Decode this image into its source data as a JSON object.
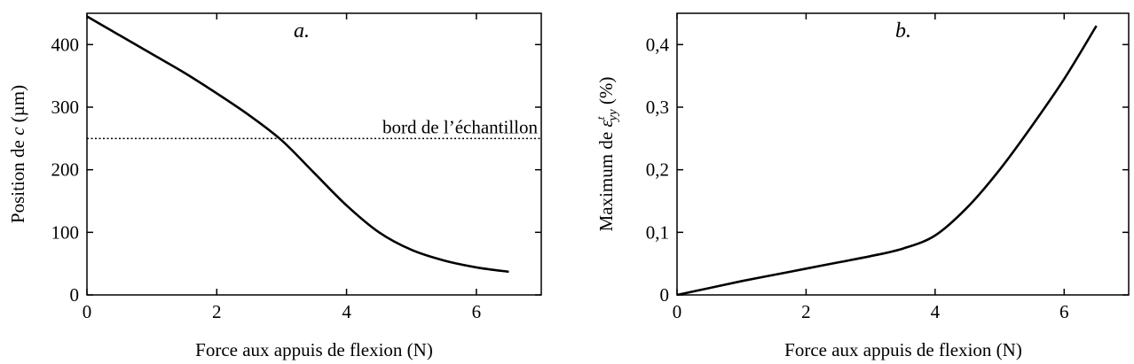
{
  "chart_data": [
    {
      "type": "line",
      "title": "a.",
      "xlabel": "Force aux appuis de flexion (N)",
      "ylabel_parts": [
        "Position de ",
        "c",
        " (µm)"
      ],
      "xlim": [
        0,
        7
      ],
      "ylim": [
        0,
        450
      ],
      "xticks": [
        0,
        2,
        4,
        6
      ],
      "xtick_labels": [
        "0",
        "2",
        "4",
        "6"
      ],
      "yticks": [
        0,
        100,
        200,
        300,
        400
      ],
      "ytick_labels": [
        "0",
        "100",
        "200",
        "300",
        "400"
      ],
      "grid": false,
      "series": [
        {
          "style": "solid",
          "x": [
            0,
            0.5,
            1,
            1.5,
            2,
            2.5,
            3,
            3.5,
            4,
            4.5,
            5,
            5.5,
            6,
            6.5
          ],
          "y": [
            445,
            415,
            385,
            355,
            322,
            287,
            247,
            195,
            143,
            100,
            72,
            55,
            44,
            37
          ]
        }
      ],
      "reference_line": {
        "y": 250,
        "label": "bord de l’échantillon",
        "style": "dotted"
      }
    },
    {
      "type": "line",
      "title": "b.",
      "xlabel": "Force aux appuis de flexion (N)",
      "ylabel_parts": [
        "Maximum de ",
        "ε",
        "t",
        "yy",
        " (%)"
      ],
      "xlim": [
        0,
        7
      ],
      "ylim": [
        0,
        0.45
      ],
      "xticks": [
        0,
        2,
        4,
        6
      ],
      "xtick_labels": [
        "0",
        "2",
        "4",
        "6"
      ],
      "yticks": [
        0,
        0.1,
        0.2,
        0.3,
        0.4
      ],
      "ytick_labels": [
        "0",
        "0,1",
        "0,2",
        "0,3",
        "0,4"
      ],
      "grid": false,
      "series": [
        {
          "style": "solid",
          "x": [
            0,
            0.5,
            1,
            1.5,
            2,
            2.5,
            3,
            3.5,
            4,
            4.5,
            5,
            5.5,
            6,
            6.5
          ],
          "y": [
            0,
            0.011,
            0.022,
            0.032,
            0.042,
            0.052,
            0.062,
            0.074,
            0.095,
            0.14,
            0.2,
            0.27,
            0.345,
            0.43
          ]
        }
      ]
    }
  ]
}
